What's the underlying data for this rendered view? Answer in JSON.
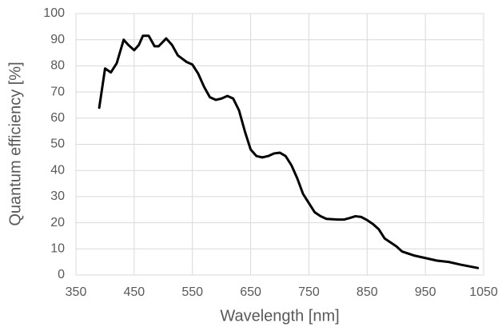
{
  "chart_data": {
    "type": "line",
    "xlabel": "Wavelength [nm]",
    "ylabel": "Quantum efficiency [%]",
    "x": [
      390,
      400,
      410,
      420,
      432,
      440,
      450,
      458,
      465,
      475,
      485,
      492,
      505,
      515,
      525,
      540,
      550,
      560,
      570,
      580,
      590,
      600,
      610,
      620,
      630,
      640,
      650,
      660,
      670,
      680,
      690,
      700,
      710,
      720,
      730,
      740,
      750,
      760,
      770,
      780,
      800,
      810,
      820,
      830,
      840,
      850,
      860,
      870,
      880,
      890,
      900,
      910,
      930,
      950,
      970,
      990,
      1010,
      1040
    ],
    "series": [
      {
        "name": "Quantum efficiency",
        "color": "#000000",
        "values": [
          64,
          79,
          77.5,
          81,
          90,
          88,
          86,
          88,
          91.5,
          91.5,
          87.5,
          87.5,
          90.5,
          88,
          84,
          81.5,
          80.5,
          77,
          72,
          68,
          67,
          67.5,
          68.5,
          67.5,
          63,
          55,
          48,
          45.5,
          45,
          45.5,
          46.5,
          46.8,
          45.5,
          42,
          37,
          31,
          27.5,
          24,
          22.5,
          21.5,
          21.2,
          21.2,
          21.8,
          22.5,
          22.2,
          21,
          19.5,
          17.5,
          14,
          12.5,
          11,
          9,
          7.5,
          6.5,
          5.5,
          5,
          4,
          2.7
        ]
      }
    ],
    "xlim": [
      350,
      1050
    ],
    "xticks": [
      350,
      450,
      550,
      650,
      750,
      850,
      950,
      1050
    ],
    "ylim": [
      0,
      100
    ],
    "yticks": [
      0,
      10,
      20,
      30,
      40,
      50,
      60,
      70,
      80,
      90,
      100
    ],
    "grid": true
  }
}
